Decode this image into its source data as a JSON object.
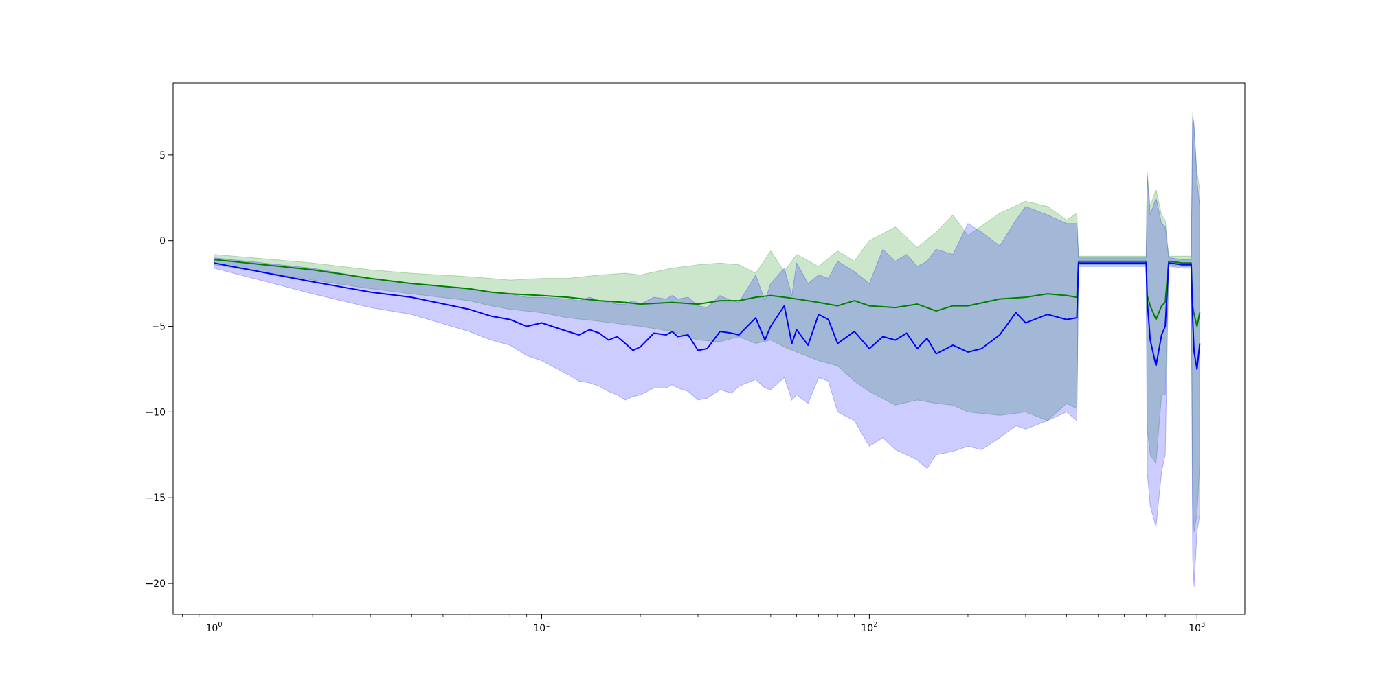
{
  "chart_data": {
    "type": "line",
    "title": "",
    "xlabel": "",
    "ylabel": "",
    "xscale": "log",
    "xlim": [
      0.75,
      1400
    ],
    "ylim": [
      -21.8,
      9.2
    ],
    "grid": false,
    "legend": "none",
    "x_ticks": [
      {
        "value": 1,
        "base": "10",
        "exp": "0"
      },
      {
        "value": 10,
        "base": "10",
        "exp": "1"
      },
      {
        "value": 100,
        "base": "10",
        "exp": "2"
      },
      {
        "value": 1000,
        "base": "10",
        "exp": "3"
      }
    ],
    "y_ticks": [
      {
        "value": 5,
        "label": "5"
      },
      {
        "value": 0,
        "label": "0"
      },
      {
        "value": -5,
        "label": "−5"
      },
      {
        "value": -10,
        "label": "−10"
      },
      {
        "value": -15,
        "label": "−15"
      },
      {
        "value": -20,
        "label": "−20"
      }
    ],
    "series": [
      {
        "color": "#008000",
        "band_color": "#008000",
        "band_opacity": 0.2,
        "x": [
          1,
          2,
          3,
          4,
          6,
          7,
          8,
          10,
          12,
          15,
          18,
          20,
          25,
          30,
          35,
          40,
          45,
          50,
          55,
          60,
          70,
          80,
          90,
          100,
          120,
          140,
          160,
          180,
          200,
          250,
          300,
          350,
          400,
          430,
          435,
          500,
          600,
          700,
          705,
          720,
          750,
          780,
          800,
          820,
          830,
          900,
          960,
          970,
          980,
          1000,
          1020
        ],
        "values": [
          -1.1,
          -1.7,
          -2.2,
          -2.5,
          -2.8,
          -3.0,
          -3.1,
          -3.2,
          -3.3,
          -3.5,
          -3.6,
          -3.7,
          -3.6,
          -3.7,
          -3.5,
          -3.5,
          -3.3,
          -3.2,
          -3.3,
          -3.4,
          -3.6,
          -3.8,
          -3.5,
          -3.8,
          -3.9,
          -3.7,
          -4.1,
          -3.8,
          -3.8,
          -3.4,
          -3.3,
          -3.1,
          -3.2,
          -3.3,
          -1.2,
          -1.2,
          -1.2,
          -1.2,
          -3.2,
          -3.8,
          -4.6,
          -3.8,
          -3.6,
          -1.2,
          -1.2,
          -1.3,
          -1.3,
          -3.8,
          -4.3,
          -5.0,
          -4.2
        ],
        "upper": [
          -0.8,
          -1.3,
          -1.7,
          -1.9,
          -2.1,
          -2.2,
          -2.3,
          -2.2,
          -2.2,
          -2.0,
          -1.9,
          -2.0,
          -1.6,
          -1.4,
          -1.3,
          -1.4,
          -1.9,
          -0.6,
          -1.8,
          -0.8,
          -1.5,
          -0.6,
          -1.2,
          0.0,
          0.8,
          -0.4,
          0.5,
          1.5,
          0.3,
          1.6,
          2.3,
          2.0,
          1.2,
          1.6,
          -0.9,
          -0.9,
          -0.9,
          -0.9,
          4.0,
          2.0,
          3.0,
          1.5,
          1.2,
          -0.9,
          -0.9,
          -0.9,
          -0.9,
          7.5,
          6.5,
          4.0,
          3.0
        ],
        "lower": [
          -1.4,
          -2.3,
          -2.8,
          -3.1,
          -3.5,
          -3.8,
          -4.0,
          -4.2,
          -4.5,
          -4.7,
          -4.9,
          -5.0,
          -5.3,
          -5.8,
          -5.9,
          -5.6,
          -6.0,
          -5.8,
          -6.2,
          -6.5,
          -7.0,
          -7.3,
          -8.2,
          -8.8,
          -9.6,
          -9.3,
          -9.5,
          -9.6,
          -10.0,
          -10.2,
          -10.0,
          -10.5,
          -9.5,
          -9.8,
          -1.4,
          -1.4,
          -1.4,
          -1.4,
          -11.0,
          -12.5,
          -13.0,
          -9.0,
          -9.0,
          -1.4,
          -1.4,
          -1.5,
          -1.5,
          -15.5,
          -17.0,
          -16.0,
          -13.0
        ]
      },
      {
        "color": "#0000ff",
        "band_color": "#0000ff",
        "band_opacity": 0.2,
        "x": [
          1,
          2,
          3,
          4,
          6,
          7,
          8,
          9,
          10,
          12,
          13,
          14,
          15,
          16,
          17,
          18,
          19,
          20,
          22,
          24,
          25,
          26,
          28,
          30,
          32,
          35,
          38,
          40,
          45,
          48,
          50,
          55,
          58,
          60,
          65,
          70,
          75,
          80,
          90,
          100,
          110,
          120,
          130,
          140,
          150,
          160,
          180,
          200,
          220,
          250,
          280,
          300,
          350,
          400,
          430,
          435,
          500,
          600,
          700,
          705,
          720,
          750,
          780,
          800,
          820,
          830,
          900,
          960,
          970,
          980,
          1000,
          1020
        ],
        "values": [
          -1.3,
          -2.4,
          -3.0,
          -3.3,
          -4.0,
          -4.4,
          -4.6,
          -5.0,
          -4.8,
          -5.3,
          -5.5,
          -5.2,
          -5.4,
          -5.8,
          -5.6,
          -6.0,
          -6.4,
          -6.2,
          -5.4,
          -5.5,
          -5.3,
          -5.6,
          -5.5,
          -6.4,
          -6.3,
          -5.3,
          -5.4,
          -5.5,
          -4.5,
          -5.8,
          -5.0,
          -3.8,
          -6.0,
          -5.2,
          -6.1,
          -4.3,
          -4.6,
          -6.0,
          -5.3,
          -6.3,
          -5.6,
          -5.8,
          -5.4,
          -6.3,
          -5.7,
          -6.6,
          -6.1,
          -6.5,
          -6.3,
          -5.5,
          -4.2,
          -4.8,
          -4.3,
          -4.6,
          -4.5,
          -1.3,
          -1.3,
          -1.3,
          -1.3,
          -3.5,
          -5.8,
          -7.3,
          -5.5,
          -5.0,
          -1.3,
          -1.3,
          -1.4,
          -1.4,
          -4.5,
          -6.5,
          -7.5,
          -6.0
        ],
        "upper": [
          -1.0,
          -1.6,
          -2.2,
          -2.5,
          -2.8,
          -3.0,
          -3.1,
          -3.3,
          -3.3,
          -3.4,
          -3.5,
          -3.3,
          -3.5,
          -3.6,
          -3.7,
          -3.7,
          -3.5,
          -3.7,
          -3.3,
          -3.4,
          -3.2,
          -3.4,
          -3.3,
          -3.8,
          -3.9,
          -3.2,
          -3.5,
          -3.6,
          -2.0,
          -3.5,
          -2.5,
          -1.6,
          -3.2,
          -1.3,
          -2.5,
          -2.0,
          -2.2,
          -1.2,
          -1.8,
          -2.5,
          -0.5,
          -1.2,
          -0.8,
          -1.5,
          -1.2,
          -0.5,
          -0.8,
          1.0,
          0.5,
          -0.3,
          1.2,
          2.0,
          1.5,
          1.0,
          1.0,
          -1.0,
          -1.0,
          -1.0,
          -1.0,
          3.8,
          1.5,
          2.5,
          1.0,
          0.8,
          -1.0,
          -1.0,
          -1.1,
          -1.1,
          7.2,
          6.8,
          3.5,
          2.0
        ],
        "lower": [
          -1.6,
          -3.1,
          -3.9,
          -4.3,
          -5.3,
          -5.8,
          -6.1,
          -6.7,
          -7.0,
          -7.8,
          -8.2,
          -8.3,
          -8.5,
          -8.8,
          -9.0,
          -9.3,
          -9.1,
          -9.0,
          -8.6,
          -8.6,
          -8.4,
          -8.6,
          -8.8,
          -9.3,
          -9.2,
          -8.7,
          -8.9,
          -8.5,
          -8.1,
          -8.6,
          -8.7,
          -8.0,
          -9.3,
          -9.0,
          -9.5,
          -8.0,
          -8.2,
          -10.0,
          -10.5,
          -12.0,
          -11.5,
          -12.2,
          -12.5,
          -12.8,
          -13.3,
          -12.5,
          -12.3,
          -12.0,
          -12.2,
          -11.5,
          -10.8,
          -11.0,
          -10.5,
          -10.0,
          -10.5,
          -1.5,
          -1.5,
          -1.5,
          -1.5,
          -13.5,
          -15.5,
          -16.7,
          -13.5,
          -12.5,
          -1.5,
          -1.5,
          -1.6,
          -1.6,
          -18.5,
          -20.2,
          -17.0,
          -16.0
        ]
      }
    ]
  }
}
